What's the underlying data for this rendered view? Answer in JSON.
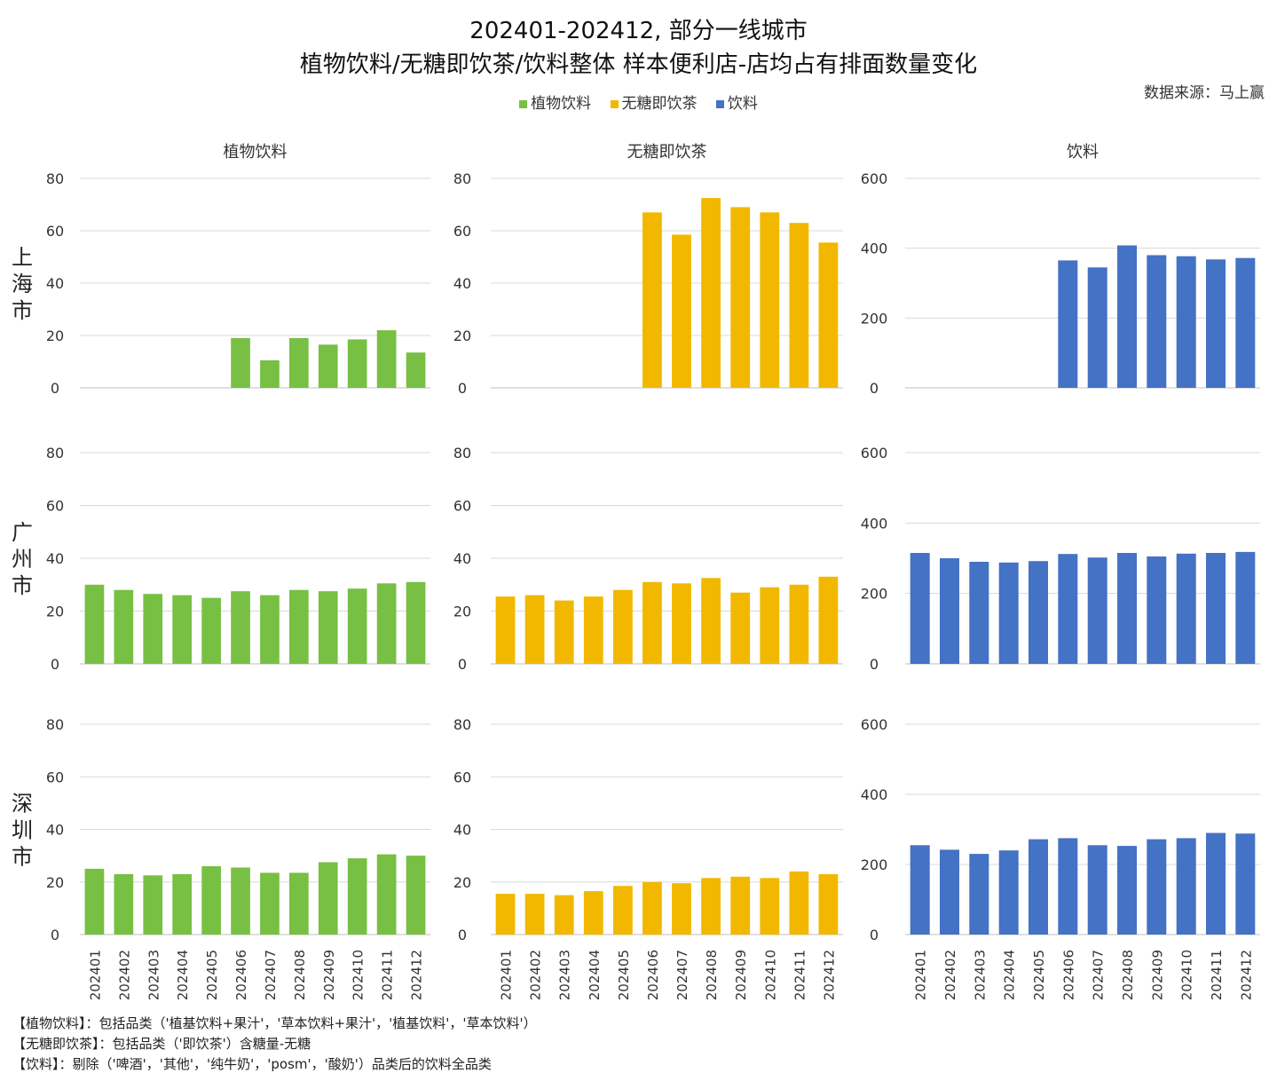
{
  "title_line1": "202401-202412, 部分一线城市",
  "title_line2": "植物饮料/无糖即饮茶/饮料整体 样本便利店-店均占有排面数量变化",
  "source": "数据来源：马上赢",
  "legend": [
    {
      "name": "植物饮料",
      "color": "#77c043"
    },
    {
      "name": "无糖即饮茶",
      "color": "#f2b800"
    },
    {
      "name": "饮料",
      "color": "#4472c4"
    }
  ],
  "notes": [
    "【植物饮料】：包括品类（'植基饮料+果汁'，'草本饮料+果汁'，'植基饮料'，'草本饮料'）",
    "【无糖即饮茶】：包括品类（'即饮茶'）含糖量-无糖",
    "【饮料】：剔除（'啤酒'，'其他'，'纯牛奶'，'posm'，'酸奶'）品类后的饮料全品类"
  ],
  "chart_data": {
    "type": "bar",
    "layout": "small-multiples",
    "categories": [
      "202401",
      "202402",
      "202403",
      "202404",
      "202405",
      "202406",
      "202407",
      "202408",
      "202409",
      "202410",
      "202411",
      "202412"
    ],
    "column_titles": [
      "植物饮料",
      "无糖即饮茶",
      "饮料"
    ],
    "row_labels": [
      "上海市",
      "广州市",
      "深圳市"
    ],
    "column_ylims": [
      [
        0,
        80
      ],
      [
        0,
        80
      ],
      [
        0,
        600
      ]
    ],
    "column_yticks": [
      [
        0,
        20,
        40,
        60,
        80
      ],
      [
        0,
        20,
        40,
        60,
        80
      ],
      [
        0,
        200,
        400,
        600
      ]
    ],
    "grid": "horizontal",
    "legend_position": "top",
    "series": [
      {
        "row": "上海市",
        "column": "植物饮料",
        "color": "#77c043",
        "values": [
          null,
          null,
          null,
          null,
          null,
          19,
          10.5,
          19,
          16.5,
          18.5,
          22,
          13.5
        ]
      },
      {
        "row": "上海市",
        "column": "无糖即饮茶",
        "color": "#f2b800",
        "values": [
          null,
          null,
          null,
          null,
          null,
          67,
          58.5,
          72.5,
          69,
          67,
          63,
          55.5
        ]
      },
      {
        "row": "上海市",
        "column": "饮料",
        "color": "#4472c4",
        "values": [
          null,
          null,
          null,
          null,
          null,
          365,
          345,
          408,
          380,
          377,
          368,
          372
        ]
      },
      {
        "row": "广州市",
        "column": "植物饮料",
        "color": "#77c043",
        "values": [
          30,
          28,
          26.5,
          26,
          25,
          27.5,
          26,
          28,
          27.5,
          28.5,
          30.5,
          31
        ]
      },
      {
        "row": "广州市",
        "column": "无糖即饮茶",
        "color": "#f2b800",
        "values": [
          25.5,
          26,
          24,
          25.5,
          28,
          31,
          30.5,
          32.5,
          27,
          29,
          30,
          33
        ]
      },
      {
        "row": "广州市",
        "column": "饮料",
        "color": "#4472c4",
        "values": [
          315,
          300,
          290,
          288,
          292,
          312,
          302,
          315,
          305,
          313,
          315,
          318
        ]
      },
      {
        "row": "深圳市",
        "column": "植物饮料",
        "color": "#77c043",
        "values": [
          25,
          23,
          22.5,
          23,
          26,
          25.5,
          23.5,
          23.5,
          27.5,
          29,
          30.5,
          30
        ]
      },
      {
        "row": "深圳市",
        "column": "无糖即饮茶",
        "color": "#f2b800",
        "values": [
          15.5,
          15.5,
          15,
          16.5,
          18.5,
          20,
          19.5,
          21.5,
          22,
          21.5,
          24,
          23
        ]
      },
      {
        "row": "深圳市",
        "column": "饮料",
        "color": "#4472c4",
        "values": [
          255,
          242,
          230,
          240,
          272,
          275,
          255,
          253,
          272,
          275,
          290,
          288
        ]
      }
    ]
  }
}
